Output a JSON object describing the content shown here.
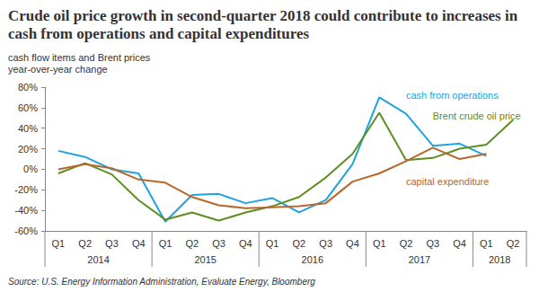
{
  "chart_data": {
    "type": "line",
    "title": "Crude oil price growth in second-quarter 2018 could contribute to increases in cash from operations and capital expenditures",
    "subtitle": [
      "cash flow items and Brent prices",
      "year-over-year change"
    ],
    "source": "Source: U.S. Energy Information Administration, Evaluate Energy, Bloomberg",
    "categories": [
      "Q1",
      "Q2",
      "Q3",
      "Q4",
      "Q1",
      "Q2",
      "Q3",
      "Q4",
      "Q1",
      "Q2",
      "Q3",
      "Q4",
      "Q1",
      "Q2",
      "Q3",
      "Q4",
      "Q1",
      "Q2"
    ],
    "category_groups": [
      {
        "label": "2014",
        "size": 4
      },
      {
        "label": "2015",
        "size": 4
      },
      {
        "label": "2016",
        "size": 4
      },
      {
        "label": "2017",
        "size": 4
      },
      {
        "label": "2018",
        "size": 2
      }
    ],
    "series": [
      {
        "name": "cash from operations",
        "color": "#1ea3dc",
        "values": [
          18,
          12,
          0,
          -4,
          -51,
          -25,
          -24,
          -33,
          -28,
          -42,
          -30,
          5,
          70,
          54,
          23,
          25,
          13,
          null
        ]
      },
      {
        "name": "Brent crude oil price",
        "color": "#5e8d22",
        "values": [
          -4,
          6,
          -5,
          -30,
          -49,
          -42,
          -50,
          -42,
          -36,
          -27,
          -8,
          15,
          55,
          9,
          11,
          20,
          24,
          48
        ]
      },
      {
        "name": "capital expenditure",
        "color": "#b8672a",
        "values": [
          0,
          5,
          1,
          -10,
          -13,
          -27,
          -35,
          -38,
          -37,
          -36,
          -33,
          -12,
          -4,
          8,
          21,
          10,
          15,
          null
        ]
      }
    ],
    "annotations": [
      {
        "text": "cash from operations",
        "x": 13,
        "y": 72
      },
      {
        "text": "Brent crude oil price",
        "x": 14,
        "y": 52
      },
      {
        "text": "capital expenditure",
        "x": 13,
        "y": -12
      }
    ],
    "ylim": [
      -60,
      80
    ],
    "yticks": [
      {
        "value": -60,
        "label": "-60%"
      },
      {
        "value": -40,
        "label": "-40%"
      },
      {
        "value": -20,
        "label": "-20%"
      },
      {
        "value": 0,
        "label": "0%"
      },
      {
        "value": 20,
        "label": "20%"
      },
      {
        "value": 40,
        "label": "40%"
      },
      {
        "value": 60,
        "label": "60%"
      },
      {
        "value": 80,
        "label": "80%"
      }
    ],
    "grid": false
  }
}
